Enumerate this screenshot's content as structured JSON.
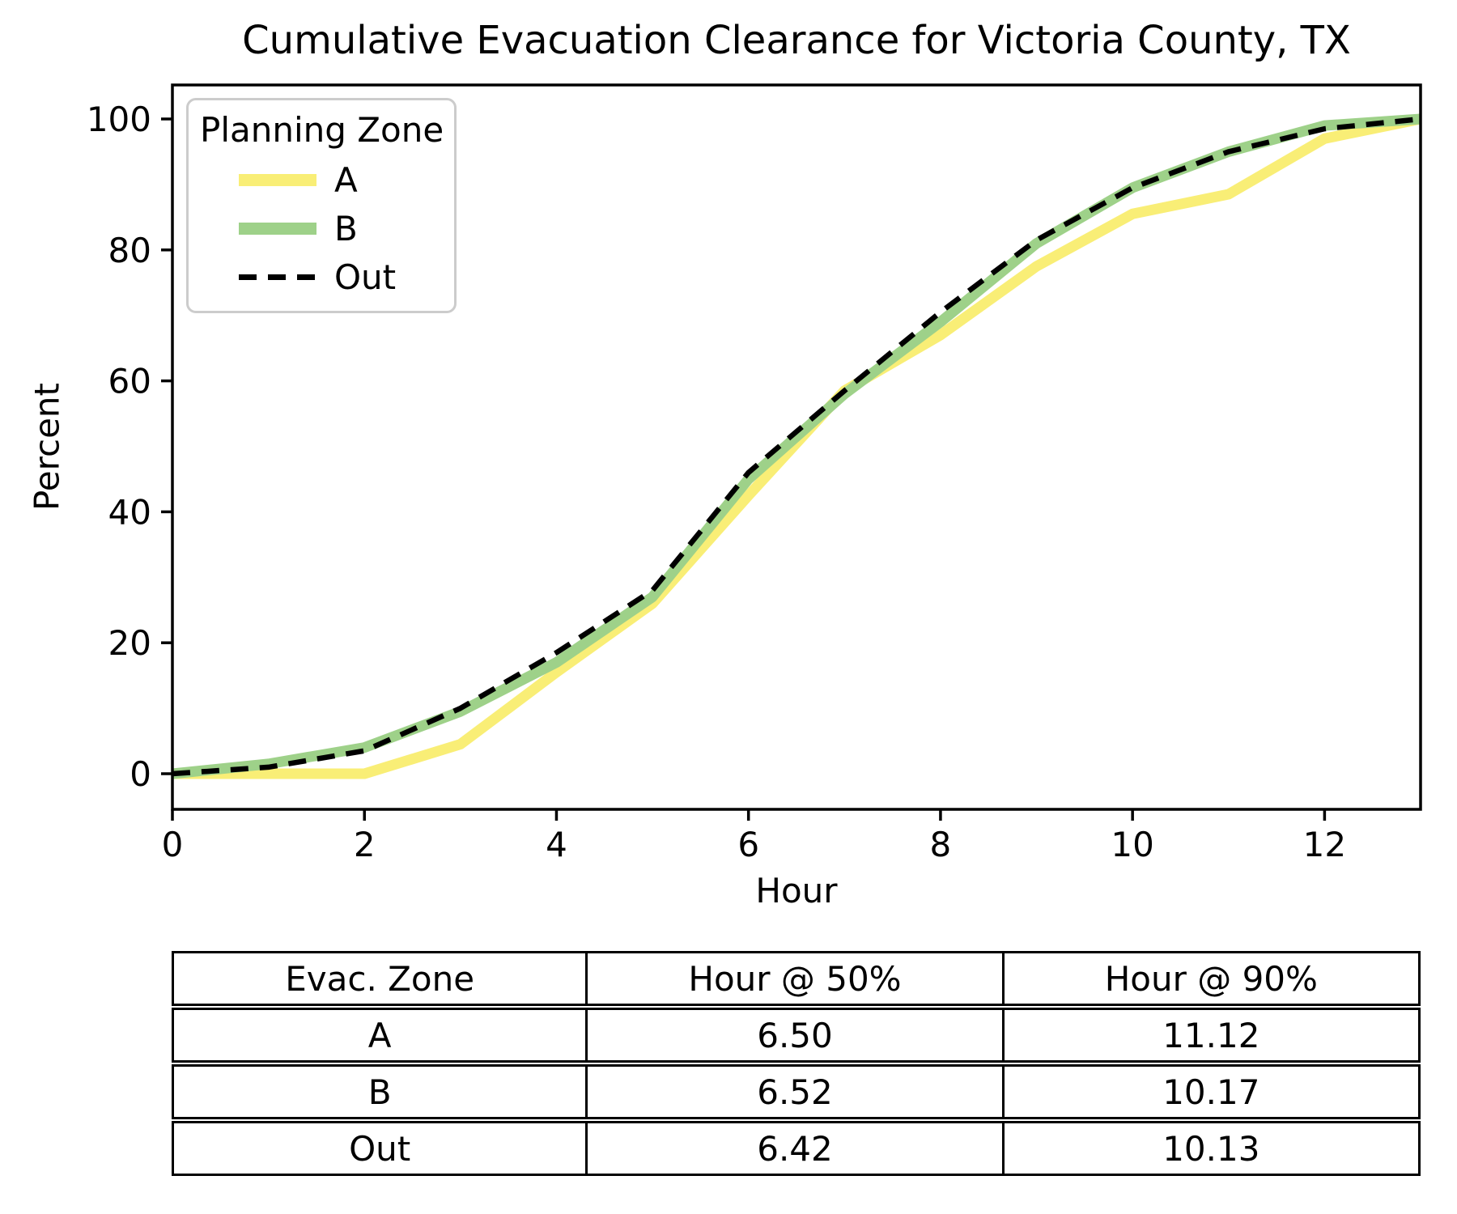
{
  "chart": {
    "title": "Cumulative Evacuation Clearance for Victoria County, TX",
    "xlabel": "Hour",
    "ylabel": "Percent"
  },
  "legend": {
    "title": "Planning Zone",
    "items": [
      {
        "label": "A",
        "style": "solid",
        "color": "#F9EE76"
      },
      {
        "label": "B",
        "style": "solid",
        "color": "#9ED189"
      },
      {
        "label": "Out",
        "style": "dashed",
        "color": "#000000"
      }
    ]
  },
  "chart_data": {
    "type": "line",
    "title": "Cumulative Evacuation Clearance for Victoria County, TX",
    "xlabel": "Hour",
    "ylabel": "Percent",
    "x": [
      0,
      1,
      2,
      3,
      4,
      5,
      6,
      7,
      8,
      9,
      10,
      11,
      12,
      13
    ],
    "series": [
      {
        "name": "A",
        "style": "solid",
        "color": "#F9EE76",
        "values": [
          0,
          0,
          0,
          4.5,
          15.5,
          26,
          42.5,
          58.5,
          67,
          77.5,
          85.5,
          88.5,
          97,
          100
        ]
      },
      {
        "name": "B",
        "style": "solid",
        "color": "#9ED189",
        "values": [
          0,
          1.5,
          4,
          9.5,
          17,
          27,
          45,
          58,
          69,
          81,
          89.5,
          95,
          99,
          100
        ]
      },
      {
        "name": "Out",
        "style": "dashed",
        "color": "#000000",
        "values": [
          0,
          1,
          3.5,
          10,
          18.5,
          28,
          46,
          58.5,
          70.5,
          81.5,
          89.5,
          95,
          98.5,
          100
        ]
      }
    ],
    "xlim": [
      0,
      13
    ],
    "ylim": [
      -5,
      105
    ],
    "xticks": [
      "0",
      "2",
      "4",
      "6",
      "8",
      "10",
      "12"
    ],
    "xtick_values": [
      0,
      2,
      4,
      6,
      8,
      10,
      12
    ],
    "yticks": [
      "0",
      "20",
      "40",
      "60",
      "80",
      "100"
    ],
    "ytick_values": [
      0,
      20,
      40,
      60,
      80,
      100
    ],
    "grid": false,
    "legend_title": "Planning Zone",
    "legend_position": "upper left"
  },
  "table": {
    "headers": [
      "Evac. Zone",
      "Hour @ 50%",
      "Hour @ 90%"
    ],
    "rows": [
      [
        "A",
        "6.50",
        "11.12"
      ],
      [
        "B",
        "6.52",
        "10.17"
      ],
      [
        "Out",
        "6.42",
        "10.13"
      ]
    ]
  }
}
